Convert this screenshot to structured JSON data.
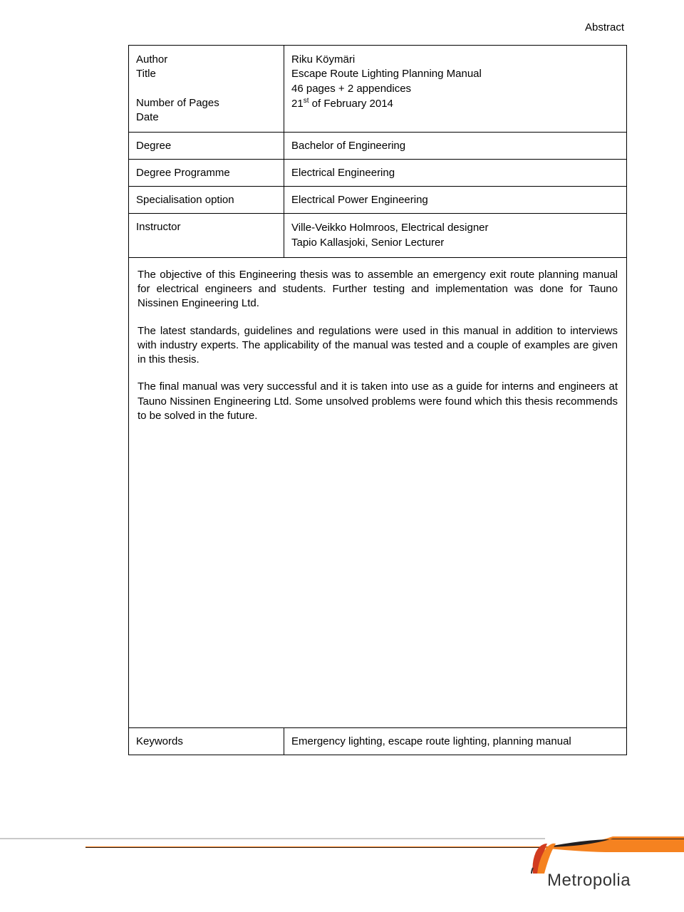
{
  "header": {
    "label": "Abstract"
  },
  "rows": {
    "author_block": {
      "labels": "Author\nTitle\n\nNumber of Pages\nDate",
      "value": "Riku Köymäri\nEscape Route Lighting Planning Manual\n46 pages + 2 appendices\n21__SUP__st__/SUP__ of February 2014"
    },
    "degree": {
      "label": "Degree",
      "value": "Bachelor of Engineering"
    },
    "programme": {
      "label": "Degree Programme",
      "value": "Electrical Engineering"
    },
    "specialisation": {
      "label": "Specialisation option",
      "value": "Electrical Power Engineering"
    },
    "instructor": {
      "label": "Instructor",
      "value": "Ville-Veikko Holmroos, Electrical designer\nTapio Kallasjoki, Senior Lecturer"
    },
    "keywords": {
      "label": "Keywords",
      "value": "Emergency lighting, escape route lighting, planning manual"
    }
  },
  "body": {
    "p1": "The objective of this Engineering thesis was to assemble an emergency exit route planning manual for electrical engineers and students. Further testing and implementation was done for Tauno Nissinen Engineering Ltd.",
    "p2": "The latest standards, guidelines and regulations were used in this manual in addition to interviews with industry experts. The applicability of the manual was tested and a couple of examples are given in this thesis.",
    "p3": "The final manual was very successful and it is taken into use as a guide for interns and engineers at Tauno Nissinen Engineering Ltd. Some unsolved problems were found which this thesis recommends to be solved in the future."
  },
  "logo": {
    "text": "Metropolia"
  },
  "colors": {
    "swoosh_orange": "#f58220",
    "swoosh_dark": "#231f20",
    "logo_orange": "#f58220",
    "logo_red": "#d13b1f",
    "gray_line": "#c9c9c9"
  }
}
